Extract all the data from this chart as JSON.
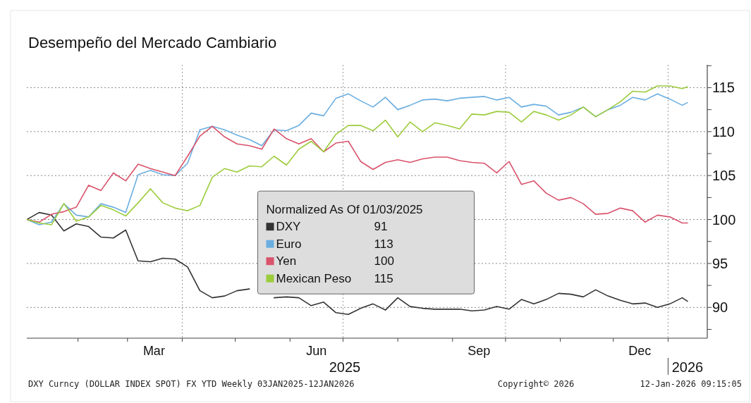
{
  "chart_data": {
    "type": "line",
    "title": "Desempeño del Mercado Cambiario",
    "legend_title": "Normalized As Of 01/03/2025",
    "x": [
      "2025-01-03",
      "2025-01-10",
      "2025-01-17",
      "2025-01-24",
      "2025-01-31",
      "2025-02-07",
      "2025-02-14",
      "2025-02-21",
      "2025-02-28",
      "2025-03-07",
      "2025-03-14",
      "2025-03-21",
      "2025-03-28",
      "2025-04-04",
      "2025-04-11",
      "2025-04-18",
      "2025-04-25",
      "2025-05-02",
      "2025-05-09",
      "2025-05-16",
      "2025-05-23",
      "2025-05-30",
      "2025-06-06",
      "2025-06-13",
      "2025-06-20",
      "2025-06-27",
      "2025-07-04",
      "2025-07-11",
      "2025-07-18",
      "2025-07-25",
      "2025-08-01",
      "2025-08-08",
      "2025-08-15",
      "2025-08-22",
      "2025-08-29",
      "2025-09-05",
      "2025-09-12",
      "2025-09-19",
      "2025-09-26",
      "2025-10-03",
      "2025-10-10",
      "2025-10-17",
      "2025-10-24",
      "2025-10-31",
      "2025-11-07",
      "2025-11-14",
      "2025-11-21",
      "2025-11-28",
      "2025-12-05",
      "2025-12-12",
      "2025-12-19",
      "2025-12-26",
      "2026-01-02",
      "2026-01-09",
      "2026-01-12"
    ],
    "series": [
      {
        "name": "DXY",
        "color": "#333333",
        "values": [
          100,
          100.8,
          100.5,
          98.7,
          99.5,
          99.2,
          98.0,
          97.9,
          98.8,
          95.3,
          95.2,
          95.6,
          95.5,
          94.6,
          91.9,
          91.1,
          91.3,
          91.9,
          92.1,
          null,
          91.1,
          91.2,
          91.1,
          90.2,
          90.6,
          89.4,
          89.2,
          89.9,
          90.4,
          89.7,
          91.1,
          90.1,
          89.9,
          89.8,
          89.8,
          89.8,
          89.6,
          89.7,
          90.1,
          89.8,
          90.9,
          90.4,
          90.9,
          91.6,
          91.5,
          91.2,
          92.0,
          91.3,
          90.8,
          90.4,
          90.5,
          90.0,
          90.4,
          91.1,
          90.7
        ]
      },
      {
        "name": "Euro",
        "color": "#6aaee0",
        "values": [
          100,
          99.4,
          99.7,
          101.8,
          100.5,
          100.3,
          101.8,
          101.4,
          100.8,
          105.1,
          105.6,
          105.1,
          105.0,
          106.4,
          110.2,
          110.6,
          110.2,
          109.6,
          109.1,
          108.4,
          110.2,
          110.1,
          110.7,
          112.1,
          111.8,
          113.8,
          114.3,
          113.5,
          112.8,
          113.9,
          112.5,
          113.0,
          113.6,
          113.7,
          113.5,
          113.8,
          113.9,
          114.0,
          113.6,
          113.9,
          112.8,
          113.1,
          112.9,
          111.9,
          112.2,
          112.8,
          111.7,
          112.5,
          113.0,
          113.9,
          113.6,
          114.3,
          113.7,
          113.0,
          113.3
        ]
      },
      {
        "name": "Yen",
        "color": "#d9536b",
        "values": [
          100,
          99.7,
          100.6,
          100.9,
          101.4,
          103.9,
          103.3,
          105.3,
          104.4,
          106.3,
          105.8,
          105.4,
          105.0,
          107.2,
          109.5,
          110.6,
          109.4,
          108.6,
          108.4,
          108.0,
          110.3,
          109.2,
          108.6,
          109.2,
          107.7,
          108.7,
          108.9,
          106.6,
          105.7,
          106.5,
          106.8,
          106.5,
          106.9,
          107.1,
          107.1,
          106.7,
          106.5,
          106.4,
          105.3,
          106.6,
          104.0,
          104.4,
          103.0,
          102.2,
          102.5,
          101.8,
          100.6,
          100.7,
          101.3,
          101.0,
          99.7,
          100.5,
          100.3,
          99.6,
          99.6
        ]
      },
      {
        "name": "Mexican Peso",
        "color": "#9ccc3c",
        "values": [
          100,
          99.6,
          99.4,
          101.8,
          99.8,
          100.3,
          101.6,
          101.1,
          100.4,
          101.9,
          103.5,
          101.9,
          101.3,
          101.0,
          101.6,
          104.8,
          105.8,
          105.4,
          106.1,
          106.0,
          107.2,
          106.2,
          108.0,
          108.9,
          107.7,
          109.7,
          110.7,
          110.7,
          110.1,
          111.3,
          109.4,
          111.1,
          110.0,
          111.0,
          110.7,
          110.3,
          112.0,
          111.9,
          112.3,
          112.2,
          111.1,
          112.3,
          111.9,
          111.3,
          111.9,
          112.8,
          111.7,
          112.5,
          113.4,
          114.6,
          114.5,
          115.2,
          115.2,
          114.9,
          115.1
        ]
      }
    ],
    "xlim": [
      "2025-01-03",
      "2026-01-22"
    ],
    "xticks": [
      {
        "value": "2025-02-01",
        "label": null
      },
      {
        "value": "2025-03-01",
        "label": null
      },
      {
        "value": "2025-03-16",
        "label": "Mar"
      },
      {
        "value": "2025-04-01",
        "label": null
      },
      {
        "value": "2025-05-01",
        "label": null
      },
      {
        "value": "2025-06-01",
        "label": null
      },
      {
        "value": "2025-06-16",
        "label": "Jun"
      },
      {
        "value": "2025-07-01",
        "label": null
      },
      {
        "value": "2025-08-01",
        "label": null
      },
      {
        "value": "2025-09-01",
        "label": null
      },
      {
        "value": "2025-09-16",
        "label": "Sep"
      },
      {
        "value": "2025-10-01",
        "label": null
      },
      {
        "value": "2025-11-01",
        "label": null
      },
      {
        "value": "2025-12-01",
        "label": null
      },
      {
        "value": "2025-12-16",
        "label": "Dec"
      },
      {
        "value": "2026-01-01",
        "label": null
      }
    ],
    "x2lim": [
      "2025-01-03",
      "2026-01-22"
    ],
    "x2ticks": [
      {
        "value": "2025-07-02",
        "label": "2025"
      },
      {
        "value": "2026-01-01",
        "label": null
      },
      {
        "value": "2026-01-12",
        "label": "2026"
      }
    ],
    "ylim": [
      86.5,
      117.6
    ],
    "yticks": [
      {
        "value": 87.5,
        "label": null
      },
      90,
      {
        "value": 92.5,
        "label": null
      },
      95,
      {
        "value": 97.5,
        "label": null
      },
      100,
      {
        "value": 102.5,
        "label": null
      },
      105,
      {
        "value": 107.5,
        "label": null
      },
      110,
      {
        "value": 112.5,
        "label": null
      },
      115,
      {
        "value": 117.5,
        "label": null
      }
    ],
    "grid": "y",
    "ref_lines": [
      {
        "axis": "x",
        "value": "2025-04-01",
        "color": "#999999",
        "line_style": "dotted"
      },
      {
        "axis": "x",
        "value": "2025-07-01",
        "color": "#999999",
        "line_style": "dotted"
      },
      {
        "axis": "x",
        "value": "2025-10-01",
        "color": "#999999",
        "line_style": "dotted"
      },
      {
        "axis": "x",
        "value": "2026-01-01",
        "color": "#999999",
        "line_style": "dotted"
      }
    ],
    "legend": "center",
    "line_style": "solid",
    "marker": "none",
    "annotations": [
      "DXY Curncy (DOLLAR INDEX SPOT) FX YTD Weekly 03JAN2025-12JAN2026",
      "Copyright© 2026",
      "12-Jan-2026 09:15:05",
      "91",
      "113",
      "100",
      "115"
    ]
  }
}
